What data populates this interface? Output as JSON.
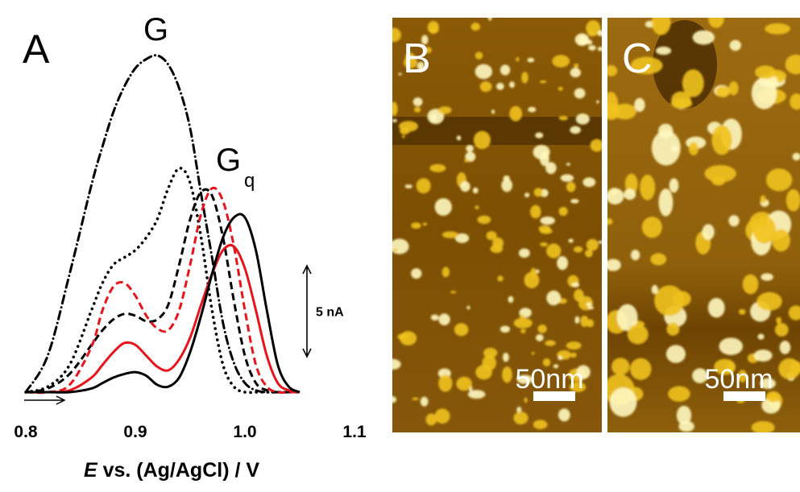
{
  "chart_data": {
    "type": "line",
    "panel_label": "A",
    "annotations": [
      {
        "text": "G"
      },
      {
        "text": "G",
        "subscript": "q"
      }
    ],
    "x_label": {
      "italic": "E",
      "rest": " vs. (Ag/AgCl) / V"
    },
    "x": [
      0.8,
      0.82,
      0.84,
      0.86,
      0.87,
      0.88,
      0.89,
      0.9,
      0.91,
      0.92,
      0.93,
      0.94,
      0.95,
      0.96,
      0.97,
      0.98,
      0.99,
      1.0,
      1.01,
      1.02,
      1.03,
      1.04,
      1.05
    ],
    "series": [
      {
        "color": "#000000",
        "dash": "dashdot",
        "values": [
          0,
          2,
          6.5,
          11.4,
          13.5,
          15.4,
          16.8,
          17.8,
          18.3,
          18.5,
          18,
          16.7,
          14.5,
          10.9,
          7.4,
          3.8,
          1.6,
          0.5,
          0.1,
          0,
          0,
          0,
          0
        ]
      },
      {
        "color": "#000000",
        "dash": "dotted",
        "values": [
          0,
          0.3,
          1.5,
          4.5,
          6,
          7,
          7.4,
          7.8,
          8.5,
          9.5,
          11.2,
          12.3,
          11.5,
          8.5,
          4.5,
          1.5,
          0.3,
          0,
          0,
          0,
          0,
          0,
          0
        ]
      },
      {
        "color": "#000000",
        "dash": "dashed",
        "values": [
          0,
          0.2,
          1,
          2.6,
          3.4,
          4,
          4.3,
          4.2,
          3.9,
          4,
          4.8,
          7,
          9.5,
          11,
          10.8,
          8.5,
          5,
          2,
          0.5,
          0.1,
          0,
          0,
          0
        ]
      },
      {
        "color": "#e8141b",
        "dash": "dashed",
        "values": [
          0,
          0,
          0.4,
          2.5,
          4.5,
          5.8,
          6,
          5.3,
          4.2,
          3.5,
          3.4,
          4.5,
          7,
          9.8,
          11.2,
          10.5,
          8,
          4.5,
          1.5,
          0.3,
          0,
          0,
          0
        ]
      },
      {
        "color": "#e8141b",
        "dash": "solid",
        "values": [
          0,
          0,
          0.1,
          0.8,
          1.5,
          2.2,
          2.7,
          2.6,
          2,
          1.4,
          1.2,
          1.8,
          3,
          4.8,
          6.5,
          7.8,
          8,
          6.8,
          4.5,
          2,
          0.5,
          0.1,
          0
        ]
      },
      {
        "color": "#000000",
        "dash": "solid",
        "values": [
          0,
          0,
          0,
          0.2,
          0.5,
          0.8,
          1,
          1.1,
          0.9,
          0.4,
          0.3,
          0.8,
          2.2,
          4.2,
          6.5,
          8.5,
          9.6,
          9.6,
          7.8,
          4.5,
          1.5,
          0.3,
          0
        ]
      }
    ],
    "xlim": [
      0.8,
      1.1
    ],
    "xticks": [
      0.8,
      0.9,
      {
        "value": 1,
        "label": "1.0"
      },
      1.1
    ],
    "ylim": [
      -0.3,
      20.2
    ],
    "scale_bar": {
      "value": 5,
      "label": "5 nA"
    },
    "grid": false
  },
  "images": [
    {
      "label": "B",
      "scale_label": "50nm"
    },
    {
      "label": "C",
      "scale_label": "50nm"
    }
  ]
}
